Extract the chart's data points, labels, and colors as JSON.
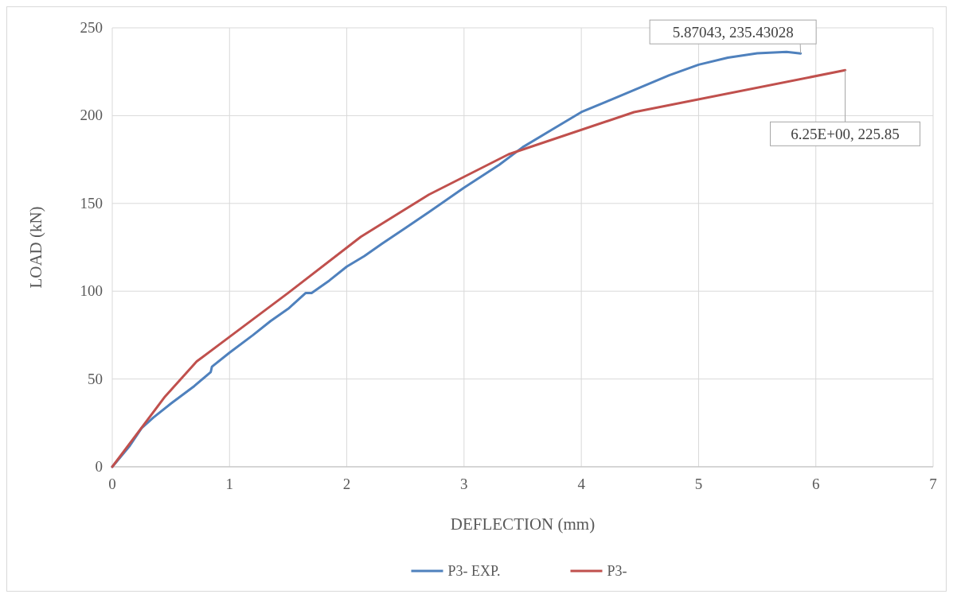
{
  "chart_data": {
    "type": "line",
    "xlabel": "DEFLECTION (mm)",
    "ylabel": "LOAD (kN)",
    "xlim": [
      0,
      7
    ],
    "xticks": [
      0,
      1,
      2,
      3,
      4,
      5,
      6,
      7
    ],
    "ylim": [
      0,
      250
    ],
    "yticks": [
      0,
      50,
      100,
      150,
      200,
      250
    ],
    "grid": true,
    "legend": "bottom",
    "line_style": "solid",
    "series": [
      {
        "name": "P3- EXP.",
        "color": "#4f81bd",
        "x": [
          0,
          0.05,
          0.15,
          0.25,
          0.35,
          0.5,
          0.7,
          0.84,
          0.85,
          1.0,
          1.2,
          1.35,
          1.5,
          1.65,
          1.7,
          1.85,
          2.0,
          2.15,
          2.3,
          2.5,
          2.7,
          3.0,
          3.3,
          3.5,
          3.75,
          4.0,
          4.25,
          4.5,
          4.75,
          5.0,
          5.25,
          5.5,
          5.75,
          5.87043
        ],
        "values": [
          0,
          4,
          12,
          22,
          28,
          36,
          46,
          54,
          57,
          65,
          75,
          83,
          90,
          99,
          99,
          106,
          114,
          120,
          127,
          136,
          145,
          159,
          172,
          182,
          192,
          202,
          209,
          216,
          223,
          229,
          233,
          235.5,
          236.3,
          235.43028
        ]
      },
      {
        "name": "P3-",
        "color": "#c0504d",
        "x": [
          0,
          0.45,
          0.72,
          1.0,
          1.5,
          2.12,
          2.7,
          3.38,
          4.45,
          6.25
        ],
        "values": [
          0,
          40,
          60,
          74,
          99,
          131,
          155,
          178,
          202,
          225.85
        ]
      }
    ],
    "annotations": [
      {
        "text": "5.87043, 235.43028",
        "x": 5.87043,
        "y": 235.43028
      },
      {
        "text": "6.25E+00, 225.85",
        "x": 6.25,
        "y": 225.85
      }
    ]
  }
}
